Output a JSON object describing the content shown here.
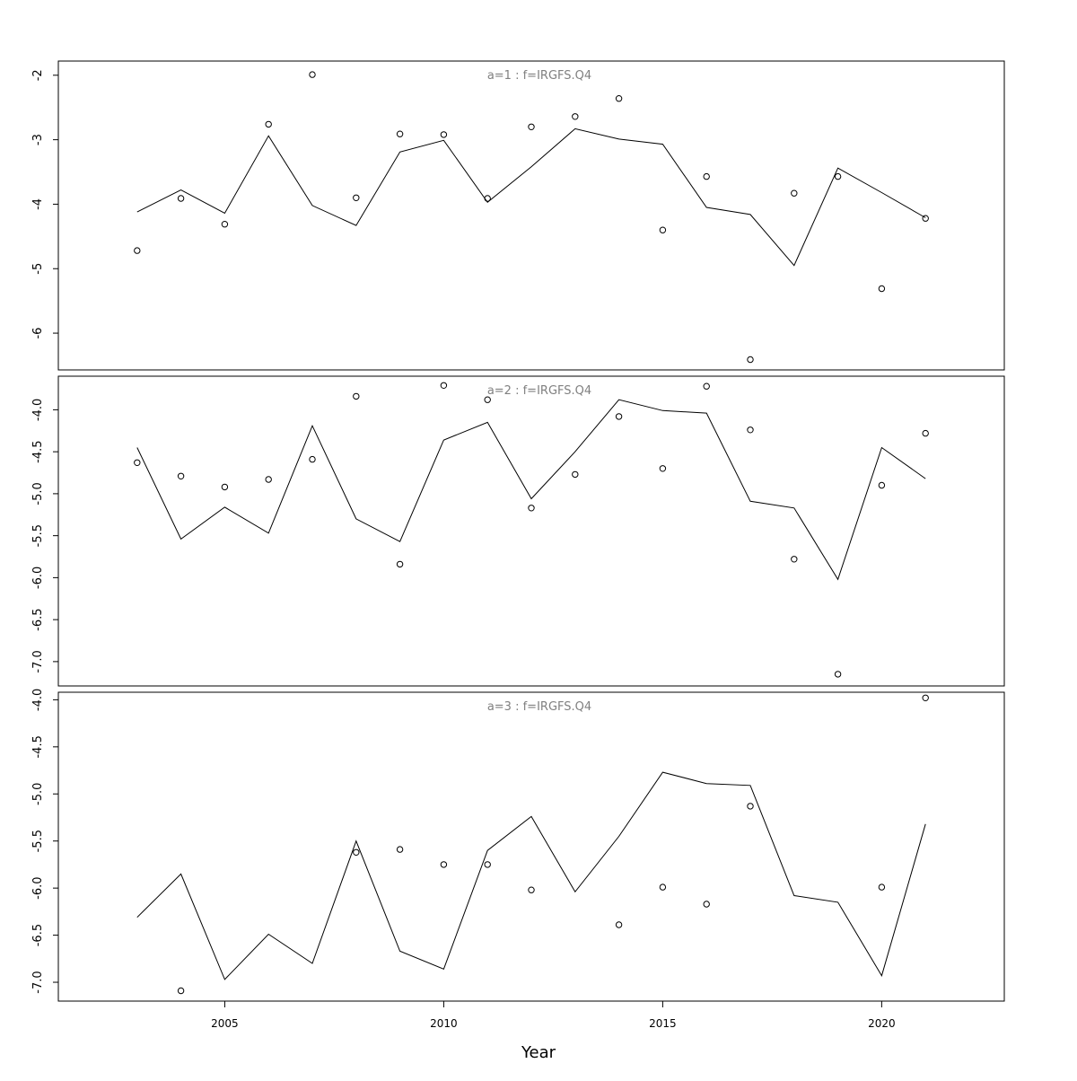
{
  "chart_data": {
    "type": "line",
    "xlabel": "Year",
    "xlim": [
      2001.2,
      2022.8
    ],
    "x_ticks": [
      2005,
      2010,
      2015,
      2020
    ],
    "x": [
      2003,
      2004,
      2005,
      2006,
      2007,
      2008,
      2009,
      2010,
      2011,
      2012,
      2013,
      2014,
      2015,
      2016,
      2017,
      2018,
      2019,
      2020,
      2021
    ],
    "panels": [
      {
        "title": "a=1 : f=IRGFS.Q4",
        "ylim": [
          -6.57,
          -1.78
        ],
        "y_ticks": [
          -2,
          -3,
          -4,
          -5,
          -6
        ],
        "fitted": [
          -4.12,
          -3.78,
          -4.14,
          -2.94,
          -4.02,
          -4.33,
          -3.19,
          -3.01,
          -3.97,
          -3.42,
          -2.83,
          -2.99,
          -3.07,
          -4.05,
          -4.16,
          -4.95,
          -3.44,
          -3.82,
          -4.21
        ],
        "observed": [
          -4.72,
          -3.91,
          -4.31,
          -2.76,
          -1.99,
          -3.9,
          -2.91,
          -2.92,
          -3.91,
          -2.8,
          -2.64,
          -2.36,
          -4.4,
          -3.57,
          -6.41,
          -3.83,
          -3.57,
          -5.31,
          -4.22
        ]
      },
      {
        "title": "a=2 : f=IRGFS.Q4",
        "ylim": [
          -7.29,
          -3.6
        ],
        "y_ticks": [
          -4.0,
          -4.5,
          -5.0,
          -5.5,
          -6.0,
          -6.5,
          -7.0
        ],
        "fitted": [
          -4.45,
          -5.54,
          -5.16,
          -5.47,
          -4.19,
          -5.3,
          -5.57,
          -4.36,
          -4.15,
          -5.06,
          -4.5,
          -3.88,
          -4.01,
          -4.04,
          -5.09,
          -5.17,
          -6.02,
          -4.45,
          -4.82
        ],
        "observed": [
          -4.63,
          -4.79,
          -4.92,
          -4.83,
          -4.59,
          -3.84,
          -5.84,
          -3.71,
          -3.88,
          -5.17,
          -4.77,
          -4.08,
          -4.7,
          -3.72,
          -4.24,
          -5.78,
          -7.15,
          -4.9,
          -4.28
        ]
      },
      {
        "title": "a=3 : f=IRGFS.Q4",
        "ylim": [
          -7.2,
          -3.92
        ],
        "y_ticks": [
          -4.0,
          -4.5,
          -5.0,
          -5.5,
          -6.0,
          -6.5,
          -7.0
        ],
        "fitted": [
          -6.31,
          -5.85,
          -6.97,
          -6.49,
          -6.8,
          -5.5,
          -6.67,
          -6.86,
          -5.6,
          -5.24,
          -6.04,
          -5.45,
          -4.77,
          -4.89,
          -4.91,
          -6.08,
          -6.15,
          -6.93,
          -5.32
        ],
        "observed": [
          null,
          -7.09,
          null,
          null,
          null,
          -5.62,
          -5.59,
          -5.75,
          -5.75,
          -6.02,
          null,
          -6.39,
          -5.99,
          -6.17,
          -5.13,
          null,
          null,
          -5.99,
          -3.98
        ]
      }
    ]
  }
}
